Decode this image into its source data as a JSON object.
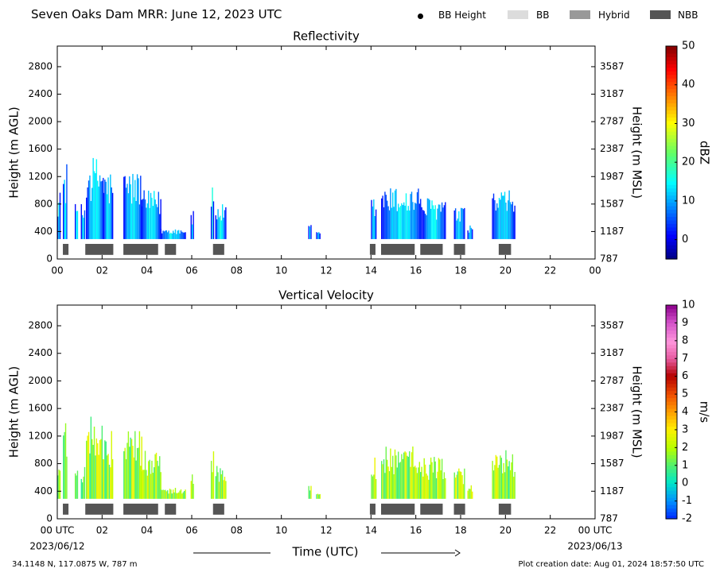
{
  "header": {
    "title": "Seven Oaks Dam MRR:  June 12, 2023 UTC",
    "legend": [
      {
        "label": "BB Height",
        "marker": "dot",
        "color": "#000000"
      },
      {
        "label": "BB",
        "marker": "box",
        "color": "#dcdcdc"
      },
      {
        "label": "Hybrid",
        "marker": "box",
        "color": "#999999"
      },
      {
        "label": "NBB",
        "marker": "box",
        "color": "#555555"
      }
    ]
  },
  "footer": {
    "coords": "34.1148 N, 117.0875 W, 787 m",
    "created": "Plot creation date: Aug 01, 2024 18:57:50 UTC",
    "xlabel": "Time (UTC)",
    "start_date": "2023/06/12",
    "end_date": "2023/06/13"
  },
  "chart_data": [
    {
      "type": "heatmap",
      "title": "Reflectivity",
      "ylabel": "Height (m AGL)",
      "ylabel_right": "Height (m MSL)",
      "xlabel": "",
      "xlim": [
        0,
        24
      ],
      "ylim": [
        0,
        3100
      ],
      "xticks": [
        "00",
        "02",
        "04",
        "06",
        "08",
        "10",
        "12",
        "14",
        "16",
        "18",
        "20",
        "22",
        "00"
      ],
      "yticks_left": [
        0,
        400,
        800,
        1200,
        1600,
        2000,
        2400,
        2800
      ],
      "yticks_right": [
        "787",
        "1187",
        "1587",
        "1987",
        "2387",
        "2787",
        "3187",
        "3587"
      ],
      "colorbar": {
        "label": "dBZ",
        "min": -5,
        "max": 50,
        "ticks": [
          0,
          10,
          20,
          30,
          40,
          50
        ]
      },
      "echo_columns": [
        {
          "t0": 0.0,
          "t1": 0.1,
          "top": 1000
        },
        {
          "t0": 0.25,
          "t1": 0.42,
          "top": 1400
        },
        {
          "t0": 0.78,
          "t1": 0.92,
          "top": 900
        },
        {
          "t0": 1.05,
          "t1": 1.22,
          "top": 800
        },
        {
          "t0": 1.28,
          "t1": 2.05,
          "top": 1500
        },
        {
          "t0": 2.05,
          "t1": 2.45,
          "top": 1300
        },
        {
          "t0": 2.95,
          "t1": 3.75,
          "top": 1300
        },
        {
          "t0": 3.75,
          "t1": 4.6,
          "top": 1000
        },
        {
          "t0": 4.6,
          "t1": 5.7,
          "top": 450
        },
        {
          "t0": 5.95,
          "t1": 6.05,
          "top": 700
        },
        {
          "t0": 6.85,
          "t1": 6.95,
          "top": 1100
        },
        {
          "t0": 7.05,
          "t1": 7.5,
          "top": 800
        },
        {
          "t0": 11.2,
          "t1": 11.3,
          "top": 500
        },
        {
          "t0": 11.55,
          "t1": 11.7,
          "top": 400
        },
        {
          "t0": 14.0,
          "t1": 14.2,
          "top": 900
        },
        {
          "t0": 14.45,
          "t1": 16.25,
          "top": 1050
        },
        {
          "t0": 16.3,
          "t1": 17.3,
          "top": 900
        },
        {
          "t0": 17.7,
          "t1": 18.15,
          "top": 750
        },
        {
          "t0": 18.3,
          "t1": 18.5,
          "top": 500
        },
        {
          "t0": 19.4,
          "t1": 20.4,
          "top": 1000
        }
      ],
      "bb_segments": [
        {
          "start": 0.25,
          "end": 0.5,
          "type": "NBB"
        },
        {
          "start": 1.25,
          "end": 2.5,
          "type": "NBB"
        },
        {
          "start": 2.95,
          "end": 4.5,
          "type": "NBB"
        },
        {
          "start": 4.8,
          "end": 5.3,
          "type": "NBB"
        },
        {
          "start": 6.95,
          "end": 7.45,
          "type": "NBB"
        },
        {
          "start": 13.95,
          "end": 14.2,
          "type": "NBB"
        },
        {
          "start": 14.45,
          "end": 15.95,
          "type": "NBB"
        },
        {
          "start": 16.2,
          "end": 17.2,
          "type": "NBB"
        },
        {
          "start": 17.7,
          "end": 18.2,
          "type": "NBB"
        },
        {
          "start": 19.7,
          "end": 20.25,
          "type": "NBB"
        }
      ]
    },
    {
      "type": "heatmap",
      "title": "Vertical Velocity",
      "ylabel": "Height (m AGL)",
      "ylabel_right": "Height (m MSL)",
      "xlabel": "Time (UTC)",
      "xlim": [
        0,
        24
      ],
      "ylim": [
        0,
        3100
      ],
      "xticks": [
        "00 UTC",
        "02",
        "04",
        "06",
        "08",
        "10",
        "12",
        "14",
        "16",
        "18",
        "20",
        "22",
        "00 UTC"
      ],
      "yticks_left": [
        0,
        400,
        800,
        1200,
        1600,
        2000,
        2400,
        2800
      ],
      "yticks_right": [
        "787",
        "1187",
        "1587",
        "1987",
        "2387",
        "2787",
        "3187",
        "3587"
      ],
      "colorbar": {
        "label": "m/s",
        "min": -2,
        "max": 10,
        "ticks": [
          -2,
          -1,
          0,
          1,
          2,
          3,
          4,
          5,
          6,
          7,
          8,
          9,
          10
        ]
      },
      "echo_columns": [
        {
          "t0": 0.0,
          "t1": 0.1,
          "top": 1000
        },
        {
          "t0": 0.25,
          "t1": 0.42,
          "top": 1400
        },
        {
          "t0": 0.78,
          "t1": 0.92,
          "top": 900
        },
        {
          "t0": 1.05,
          "t1": 1.22,
          "top": 800
        },
        {
          "t0": 1.28,
          "t1": 2.05,
          "top": 1500
        },
        {
          "t0": 2.05,
          "t1": 2.45,
          "top": 1300
        },
        {
          "t0": 2.95,
          "t1": 3.75,
          "top": 1300
        },
        {
          "t0": 3.75,
          "t1": 4.6,
          "top": 1000
        },
        {
          "t0": 4.6,
          "t1": 5.7,
          "top": 450
        },
        {
          "t0": 5.95,
          "t1": 6.05,
          "top": 700
        },
        {
          "t0": 6.85,
          "t1": 6.95,
          "top": 1100
        },
        {
          "t0": 7.05,
          "t1": 7.5,
          "top": 800
        },
        {
          "t0": 11.2,
          "t1": 11.3,
          "top": 500
        },
        {
          "t0": 11.55,
          "t1": 11.7,
          "top": 400
        },
        {
          "t0": 14.0,
          "t1": 14.2,
          "top": 900
        },
        {
          "t0": 14.45,
          "t1": 16.25,
          "top": 1050
        },
        {
          "t0": 16.3,
          "t1": 17.3,
          "top": 900
        },
        {
          "t0": 17.7,
          "t1": 18.15,
          "top": 750
        },
        {
          "t0": 18.3,
          "t1": 18.5,
          "top": 500
        },
        {
          "t0": 19.4,
          "t1": 20.4,
          "top": 1000
        }
      ],
      "bb_segments": [
        {
          "start": 0.25,
          "end": 0.5,
          "type": "NBB"
        },
        {
          "start": 1.25,
          "end": 2.5,
          "type": "NBB"
        },
        {
          "start": 2.95,
          "end": 4.5,
          "type": "NBB"
        },
        {
          "start": 4.8,
          "end": 5.3,
          "type": "NBB"
        },
        {
          "start": 6.95,
          "end": 7.45,
          "type": "NBB"
        },
        {
          "start": 13.95,
          "end": 14.2,
          "type": "NBB"
        },
        {
          "start": 14.45,
          "end": 15.95,
          "type": "NBB"
        },
        {
          "start": 16.2,
          "end": 17.2,
          "type": "NBB"
        },
        {
          "start": 17.7,
          "end": 18.2,
          "type": "NBB"
        },
        {
          "start": 19.7,
          "end": 20.25,
          "type": "NBB"
        }
      ]
    }
  ]
}
